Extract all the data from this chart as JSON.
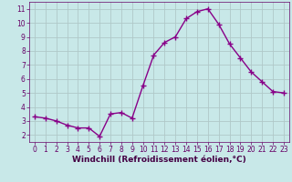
{
  "x": [
    0,
    1,
    2,
    3,
    4,
    5,
    6,
    7,
    8,
    9,
    10,
    11,
    12,
    13,
    14,
    15,
    16,
    17,
    18,
    19,
    20,
    21,
    22,
    23
  ],
  "y": [
    3.3,
    3.2,
    3.0,
    2.7,
    2.5,
    2.5,
    1.9,
    3.5,
    3.6,
    3.2,
    5.5,
    7.7,
    8.6,
    9.0,
    10.3,
    10.8,
    11.0,
    9.9,
    8.5,
    7.5,
    6.5,
    5.8,
    5.1,
    5.0
  ],
  "line_color": "#880088",
  "marker": "+",
  "marker_size": 4,
  "marker_lw": 1.0,
  "xlabel": "Windchill (Refroidissement éolien,°C)",
  "xlim": [
    -0.5,
    23.5
  ],
  "ylim": [
    1.5,
    11.5
  ],
  "yticks": [
    2,
    3,
    4,
    5,
    6,
    7,
    8,
    9,
    10,
    11
  ],
  "xticks": [
    0,
    1,
    2,
    3,
    4,
    5,
    6,
    7,
    8,
    9,
    10,
    11,
    12,
    13,
    14,
    15,
    16,
    17,
    18,
    19,
    20,
    21,
    22,
    23
  ],
  "bg_color": "#c8e8e8",
  "grid_color": "#b0c8c8",
  "line_color2": "#880088",
  "tick_color": "#660066",
  "label_color": "#440044",
  "tick_font_size": 5.5,
  "xlabel_font_size": 6.5,
  "linewidth": 1.0
}
